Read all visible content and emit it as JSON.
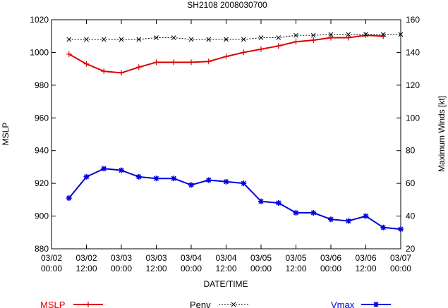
{
  "chart_data": {
    "type": "line",
    "title": "SH2108 2008030700",
    "xlabel": "DATE/TIME",
    "ylabel_left": "MSLP",
    "ylabel_right": "Maximum Winds [kt]",
    "x_range_hours": [
      0,
      120
    ],
    "x_ticks": [
      {
        "hours": 0,
        "label_date": "03/02",
        "label_time": "00:00"
      },
      {
        "hours": 12,
        "label_date": "03/02",
        "label_time": "12:00"
      },
      {
        "hours": 24,
        "label_date": "03/03",
        "label_time": "00:00"
      },
      {
        "hours": 36,
        "label_date": "03/03",
        "label_time": "12:00"
      },
      {
        "hours": 48,
        "label_date": "03/04",
        "label_time": "00:00"
      },
      {
        "hours": 60,
        "label_date": "03/04",
        "label_time": "12:00"
      },
      {
        "hours": 72,
        "label_date": "03/05",
        "label_time": "00:00"
      },
      {
        "hours": 84,
        "label_date": "03/05",
        "label_time": "12:00"
      },
      {
        "hours": 96,
        "label_date": "03/06",
        "label_time": "00:00"
      },
      {
        "hours": 108,
        "label_date": "03/06",
        "label_time": "12:00"
      },
      {
        "hours": 120,
        "label_date": "03/07",
        "label_time": "00:00"
      }
    ],
    "y_left": {
      "min": 880,
      "max": 1020,
      "ticks": [
        880,
        900,
        920,
        940,
        960,
        980,
        1000,
        1020
      ]
    },
    "y_right": {
      "min": 20,
      "max": 160,
      "ticks": [
        20,
        40,
        60,
        80,
        100,
        120,
        140,
        160
      ]
    },
    "x": [
      6,
      12,
      18,
      24,
      30,
      36,
      42,
      48,
      54,
      60,
      66,
      72,
      78,
      84,
      90,
      96,
      102,
      108,
      114,
      120
    ],
    "series": [
      {
        "name": "MSLP",
        "axis": "left",
        "color": "#dd0000",
        "marker": "plus",
        "values": [
          999,
          993,
          988.5,
          987.5,
          991,
          994,
          994,
          994,
          994.5,
          997.5,
          1000,
          1002,
          1004,
          1006.5,
          1007.5,
          1009,
          1009,
          1010.5,
          1010,
          null
        ]
      },
      {
        "name": "Penv",
        "axis": "left",
        "color": "#000000",
        "marker": "x",
        "dashed": true,
        "values": [
          1008,
          1008,
          1008,
          1008,
          1008,
          1009,
          1009,
          1008,
          1008,
          1008,
          1008,
          1009,
          1009,
          1010.5,
          1010.5,
          1011,
          1011,
          1011,
          1011,
          1011
        ]
      },
      {
        "name": "Vmax",
        "axis": "right",
        "color": "#0000dd",
        "marker": "star",
        "values": [
          51,
          64,
          69,
          68,
          64,
          63,
          63,
          59,
          62,
          61,
          60,
          49,
          48,
          42,
          42,
          38,
          37,
          40,
          33,
          32
        ]
      }
    ]
  }
}
